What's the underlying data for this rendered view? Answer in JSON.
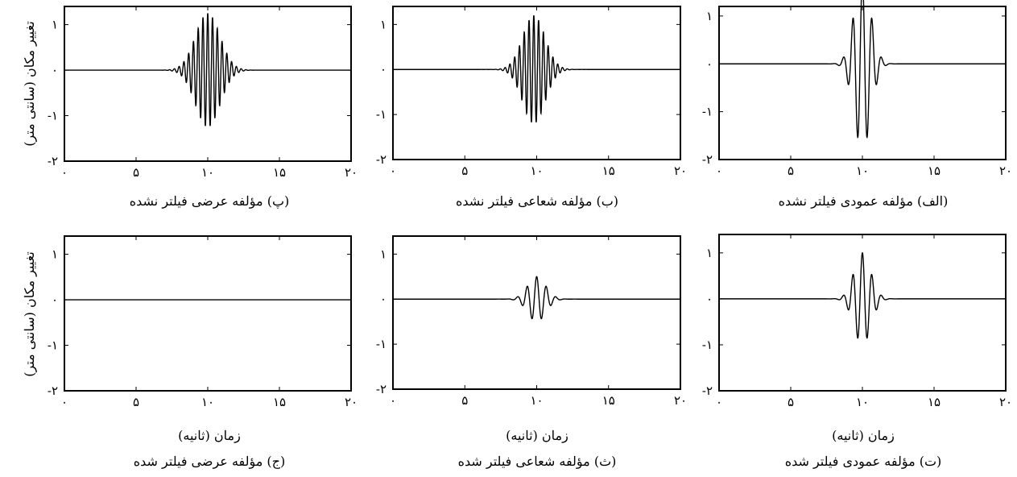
{
  "ylabel": "تغییر مکان (سانتی متر)",
  "chart_data": [
    {
      "id": "p",
      "type": "line",
      "title": "(پ) مؤلفه عرضی فیلتر نشده",
      "xlabel": "",
      "xlim": [
        0,
        20
      ],
      "ylim": [
        -2,
        1.4
      ],
      "xticks": [
        0,
        5,
        10,
        15,
        20
      ],
      "xtick_labels": [
        "۰",
        "۵",
        "۱۰",
        "۱۵",
        "۲۰"
      ],
      "yticks": [
        1,
        0,
        -1,
        -2
      ],
      "ytick_labels": [
        "۱",
        "۰",
        "-۱",
        "-۲"
      ],
      "series": [
        {
          "x_range": [
            0,
            20
          ],
          "signal": {
            "center": 10,
            "width": 2.2,
            "amplitude": 1.25,
            "frequency": 3.0,
            "support": [
              6.0,
              14.0
            ]
          }
        }
      ]
    },
    {
      "id": "b",
      "type": "line",
      "title": "(ب) مؤلفه شعاعی فیلتر نشده",
      "xlabel": "",
      "xlim": [
        0,
        20
      ],
      "ylim": [
        -2,
        1.4
      ],
      "xticks": [
        0,
        5,
        10,
        15,
        20
      ],
      "xtick_labels": [
        "۰",
        "۵",
        "۱۰",
        "۱۵",
        "۲۰"
      ],
      "yticks": [
        1,
        0,
        -1,
        -2
      ],
      "ytick_labels": [
        "۱",
        "۰",
        "-۱",
        "-۲"
      ],
      "series": [
        {
          "x_range": [
            0,
            20
          ],
          "signal": {
            "center": 9.8,
            "width": 2.0,
            "amplitude": 1.2,
            "frequency": 3.0,
            "support": [
              6.0,
              13.5
            ]
          }
        }
      ]
    },
    {
      "id": "alef",
      "type": "line",
      "title": "(الف) مؤلفه عمودی فیلتر نشده",
      "xlabel": "",
      "xlim": [
        0,
        20
      ],
      "ylim": [
        -2,
        1.2
      ],
      "xticks": [
        0,
        5,
        10,
        15,
        20
      ],
      "xtick_labels": [
        "۰",
        "۵",
        "۱۰",
        "۱۵",
        "۲۰"
      ],
      "yticks": [
        1,
        0,
        -1,
        -2
      ],
      "ytick_labels": [
        "۱",
        "۰",
        "-۱",
        "-۲"
      ],
      "series": [
        {
          "x_range": [
            0,
            20
          ],
          "signal": {
            "center": 10,
            "width": 1.5,
            "amplitude": 1.8,
            "frequency": 1.5,
            "support": [
              6.5,
              13.5
            ]
          }
        }
      ]
    },
    {
      "id": "j",
      "type": "line",
      "title": "(ج) مؤلفه عرضی فیلتر شده",
      "xlabel": "زمان (ثانیه)",
      "xlim": [
        0,
        20
      ],
      "ylim": [
        -2,
        1.4
      ],
      "xticks": [
        0,
        5,
        10,
        15,
        20
      ],
      "xtick_labels": [
        "۰",
        "۵",
        "۱۰",
        "۱۵",
        "۲۰"
      ],
      "yticks": [
        1,
        0,
        -1,
        -2
      ],
      "ytick_labels": [
        "۱",
        "۰",
        "-۱",
        "-۲"
      ],
      "series": [
        {
          "x_range": [
            0,
            20
          ],
          "signal": {
            "center": 10,
            "width": 1.5,
            "amplitude": 0.0,
            "frequency": 1.5,
            "support": [
              6.5,
              13.5
            ]
          }
        }
      ]
    },
    {
      "id": "th",
      "type": "line",
      "title": "(ث) مؤلفه شعاعی فیلتر شده",
      "xlabel": "زمان (ثانیه)",
      "xlim": [
        0,
        20
      ],
      "ylim": [
        -2,
        1.4
      ],
      "xticks": [
        0,
        5,
        10,
        15,
        20
      ],
      "xtick_labels": [
        "۰",
        "۵",
        "۱۰",
        "۱۵",
        "۲۰"
      ],
      "yticks": [
        1,
        0,
        -1,
        -2
      ],
      "ytick_labels": [
        "۱",
        "۰",
        "-۱",
        "-۲"
      ],
      "series": [
        {
          "x_range": [
            0,
            20
          ],
          "signal": {
            "center": 10,
            "width": 1.6,
            "amplitude": 0.5,
            "frequency": 1.5,
            "support": [
              6.5,
              13.0
            ]
          }
        }
      ]
    },
    {
      "id": "t",
      "type": "line",
      "title": "(ت) مؤلفه عمودی فیلتر شده",
      "xlabel": "زمان (ثانیه)",
      "xlim": [
        0,
        20
      ],
      "ylim": [
        -2,
        1.4
      ],
      "xticks": [
        0,
        5,
        10,
        15,
        20
      ],
      "xtick_labels": [
        "۰",
        "۵",
        "۱۰",
        "۱۵",
        "۲۰"
      ],
      "yticks": [
        1,
        0,
        -1,
        -2
      ],
      "ytick_labels": [
        "۱",
        "۰",
        "-۱",
        "-۲"
      ],
      "series": [
        {
          "x_range": [
            0,
            20
          ],
          "signal": {
            "center": 10,
            "width": 1.5,
            "amplitude": 1.0,
            "frequency": 1.5,
            "support": [
              6.5,
              13.5
            ]
          }
        }
      ]
    }
  ]
}
